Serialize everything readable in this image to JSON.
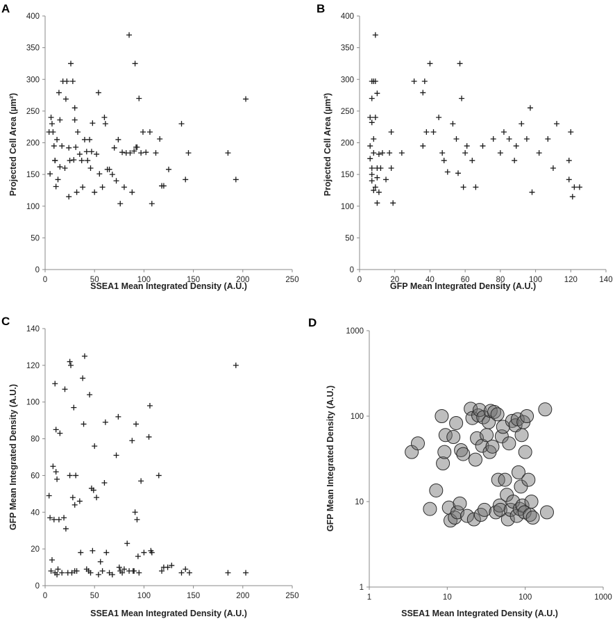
{
  "chart_data": [
    {
      "panel": "A",
      "type": "scatter",
      "marker": "plus",
      "xlabel": "SSEA1 Mean Integrated Density (A.U.)",
      "ylabel": "Projected Cell Area (µm²)",
      "xlim": [
        0,
        250
      ],
      "ylim": [
        0,
        400
      ],
      "xticks": [
        0,
        50,
        100,
        150,
        200,
        250
      ],
      "yticks": [
        0,
        50,
        100,
        150,
        200,
        250,
        300,
        350,
        400
      ],
      "x": [
        4,
        5,
        6,
        7,
        8,
        9,
        10,
        10,
        11,
        12,
        13,
        14,
        15,
        15,
        17,
        18,
        20,
        21,
        22,
        24,
        24,
        25,
        26,
        28,
        29,
        30,
        30,
        31,
        32,
        33,
        35,
        37,
        38,
        40,
        42,
        43,
        45,
        46,
        47,
        48,
        50,
        52,
        54,
        55,
        58,
        60,
        61,
        63,
        65,
        68,
        70,
        72,
        74,
        76,
        78,
        80,
        82,
        85,
        86,
        88,
        90,
        91,
        92,
        93,
        95,
        97,
        99,
        102,
        106,
        108,
        112,
        116,
        118,
        120,
        125,
        138,
        142,
        145,
        185,
        193,
        203
      ],
      "y": [
        217,
        151,
        240,
        230,
        217,
        195,
        172,
        172,
        131,
        205,
        142,
        279,
        162,
        236,
        195,
        297,
        160,
        269,
        297,
        192,
        115,
        172,
        325,
        297,
        173,
        255,
        236,
        193,
        122,
        217,
        182,
        172,
        130,
        205,
        186,
        172,
        205,
        160,
        186,
        231,
        122,
        182,
        279,
        151,
        130,
        240,
        230,
        158,
        158,
        150,
        192,
        140,
        205,
        104,
        185,
        130,
        184,
        370,
        184,
        122,
        187,
        325,
        193,
        193,
        270,
        184,
        217,
        185,
        217,
        104,
        184,
        206,
        132,
        132,
        158,
        230,
        142,
        184,
        184,
        142,
        269
      ]
    },
    {
      "panel": "B",
      "type": "scatter",
      "marker": "plus",
      "xlabel": "GFP Mean Integrated Density (A.U.)",
      "ylabel": "Projected Cell Area (µm²)",
      "xlim": [
        0,
        140
      ],
      "ylim": [
        0,
        400
      ],
      "xticks": [
        0,
        20,
        40,
        60,
        80,
        100,
        120,
        140
      ],
      "yticks": [
        0,
        50,
        100,
        150,
        200,
        250,
        300,
        350,
        400
      ],
      "x": [
        6,
        6,
        6,
        7,
        7,
        7,
        7,
        7,
        7,
        8,
        8,
        8,
        8,
        9,
        9,
        9,
        9,
        10,
        10,
        10,
        10,
        11,
        11,
        12,
        13,
        15,
        17,
        18,
        18,
        19,
        24,
        31,
        36,
        36,
        37,
        38,
        40,
        42,
        45,
        47,
        48,
        50,
        53,
        55,
        56,
        57,
        58,
        59,
        60,
        61,
        64,
        66,
        70,
        76,
        80,
        82,
        85,
        88,
        89,
        92,
        95,
        97,
        98,
        102,
        107,
        110,
        112,
        119,
        119,
        120,
        121,
        122,
        125
      ],
      "y": [
        195,
        240,
        175,
        232,
        270,
        160,
        150,
        140,
        297,
        297,
        206,
        184,
        125,
        370,
        240,
        130,
        297,
        160,
        278,
        145,
        105,
        122,
        182,
        160,
        184,
        142,
        184,
        217,
        160,
        105,
        184,
        297,
        195,
        279,
        297,
        217,
        325,
        217,
        240,
        184,
        172,
        154,
        230,
        206,
        152,
        325,
        270,
        130,
        184,
        195,
        172,
        130,
        195,
        206,
        184,
        217,
        206,
        172,
        195,
        230,
        206,
        255,
        122,
        184,
        206,
        160,
        230,
        172,
        142,
        217,
        115,
        130,
        130
      ]
    },
    {
      "panel": "C",
      "type": "scatter",
      "marker": "plus",
      "xlabel": "SSEA1 Mean Integrated Density (A.U.)",
      "ylabel": "GFP Mean Integrated Density (A.U.)",
      "xlim": [
        0,
        250
      ],
      "ylim": [
        0,
        140
      ],
      "xticks": [
        0,
        50,
        100,
        150,
        200,
        250
      ],
      "yticks": [
        0,
        20,
        40,
        60,
        80,
        100,
        120,
        140
      ],
      "x": [
        4,
        5,
        6,
        7,
        8,
        9,
        10,
        10,
        11,
        11,
        12,
        12,
        13,
        14,
        15,
        17,
        19,
        20,
        21,
        23,
        25,
        25,
        26,
        27,
        28,
        29,
        30,
        30,
        31,
        32,
        35,
        36,
        38,
        39,
        40,
        42,
        44,
        45,
        46,
        47,
        48,
        49,
        50,
        52,
        54,
        56,
        58,
        60,
        61,
        62,
        65,
        68,
        72,
        74,
        75,
        76,
        78,
        80,
        83,
        85,
        88,
        89,
        90,
        91,
        92,
        93,
        94,
        95,
        97,
        100,
        105,
        106,
        107,
        108,
        115,
        118,
        120,
        124,
        128,
        138,
        142,
        146,
        185,
        193,
        203
      ],
      "y": [
        49,
        37,
        8,
        14,
        65,
        36,
        7,
        110,
        85,
        62,
        6,
        58,
        9,
        36,
        83,
        7,
        37,
        107,
        31,
        7,
        122,
        60,
        120,
        7,
        48,
        97,
        8,
        44,
        60,
        8,
        46,
        18,
        113,
        88,
        125,
        9,
        8,
        104,
        7,
        53,
        19,
        52,
        76,
        48,
        6,
        13,
        8,
        56,
        89,
        18,
        7,
        6,
        71,
        92,
        10,
        8,
        7,
        9,
        23,
        8,
        79,
        8,
        8,
        40,
        88,
        36,
        16,
        7,
        57,
        18,
        81,
        98,
        19,
        18,
        60,
        8,
        10,
        10,
        11,
        7,
        9,
        7,
        7,
        120,
        7
      ]
    },
    {
      "panel": "D",
      "type": "scatter",
      "marker": "bubble",
      "xlabel": "SSEA1 Mean Integrated Density (A.U.)",
      "ylabel": "GFP Mean Integrated Density (A.U.)",
      "xscale": "log",
      "yscale": "log",
      "xlim": [
        1,
        1000
      ],
      "ylim": [
        1,
        1000
      ],
      "xticks": [
        1,
        10,
        100,
        1000
      ],
      "yticks": [
        1,
        10,
        100,
        1000
      ],
      "xtick_labels": [
        "1",
        "10",
        "100",
        "1000"
      ],
      "ytick_labels": [
        "1",
        "10",
        "100",
        "1000"
      ],
      "x": [
        3.5,
        4.2,
        6,
        7.2,
        8.5,
        8.8,
        9.2,
        9.5,
        10.5,
        11,
        12,
        12.5,
        13,
        13.5,
        14.5,
        15,
        16,
        18,
        20,
        21,
        22,
        23,
        24,
        25,
        26,
        27,
        28,
        29,
        30,
        32,
        34,
        35,
        36,
        38,
        40,
        42,
        44,
        45,
        47,
        48,
        50,
        52,
        55,
        58,
        60,
        62,
        65,
        68,
        70,
        75,
        78,
        80,
        82,
        85,
        88,
        90,
        92,
        95,
        98,
        100,
        105,
        110,
        115,
        120,
        125,
        180,
        190
      ],
      "y": [
        38,
        48,
        8.2,
        13.5,
        100,
        28,
        38,
        60,
        8.5,
        6,
        57,
        6.5,
        83,
        7.5,
        9.5,
        40,
        36,
        6.8,
        122,
        95,
        6.2,
        31,
        55,
        102,
        118,
        7,
        45,
        97,
        8,
        60,
        85,
        38,
        115,
        44,
        112,
        7.5,
        105,
        18,
        9,
        8,
        58,
        75,
        18,
        12,
        6.2,
        48,
        8,
        88,
        10,
        78,
        6.8,
        92,
        22,
        8.2,
        15,
        60,
        9,
        85,
        7.5,
        38,
        100,
        18,
        7,
        10,
        6.5,
        120,
        7.5
      ]
    }
  ],
  "panels": {
    "a": {
      "label": "A"
    },
    "b": {
      "label": "B"
    },
    "c": {
      "label": "C"
    },
    "d": {
      "label": "D"
    }
  }
}
